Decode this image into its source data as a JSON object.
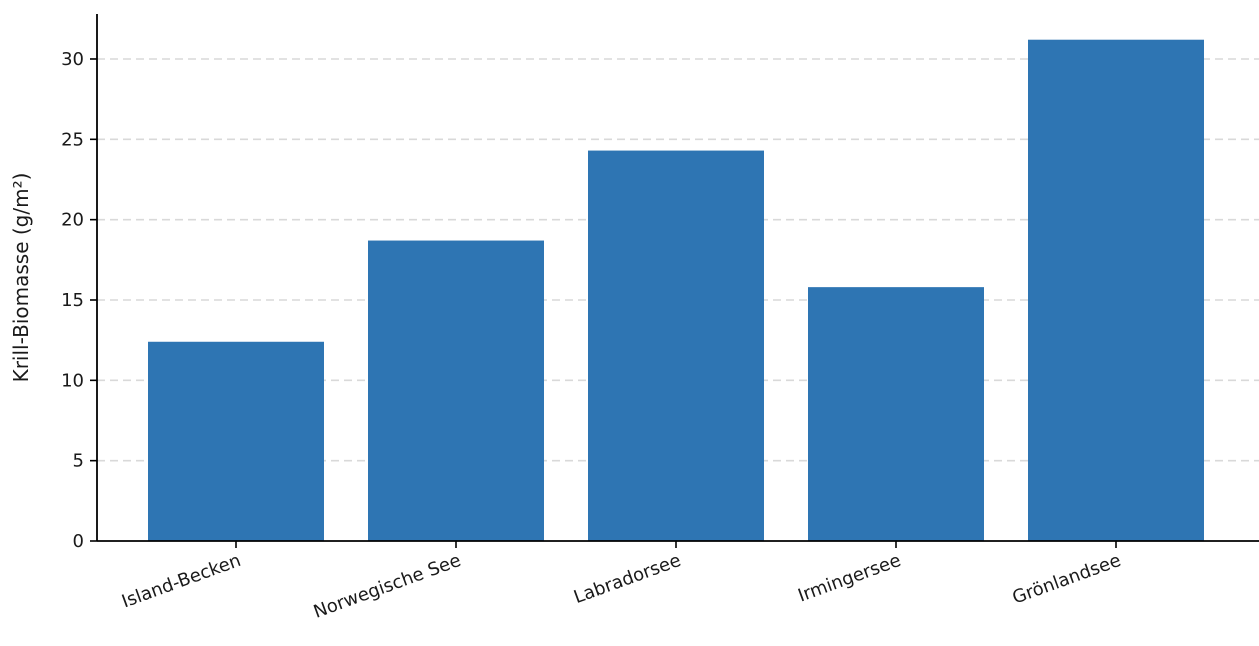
{
  "chart_data": {
    "type": "bar",
    "categories": [
      "Island-Becken",
      "Norwegische See",
      "Labradorsee",
      "Irmingersee",
      "Grönlandsee"
    ],
    "values": [
      12.4,
      18.7,
      24.3,
      15.8,
      31.2
    ],
    "title": "",
    "xlabel": "",
    "ylabel": "Krill-Biomasse (g/m²)",
    "ylim": [
      0,
      32.8
    ],
    "yticks": [
      0,
      5,
      10,
      15,
      20,
      25,
      30
    ],
    "grid": "horizontal dashed",
    "bar_color": "#2e75b3",
    "x_tick_rotation": "20 degrees"
  }
}
